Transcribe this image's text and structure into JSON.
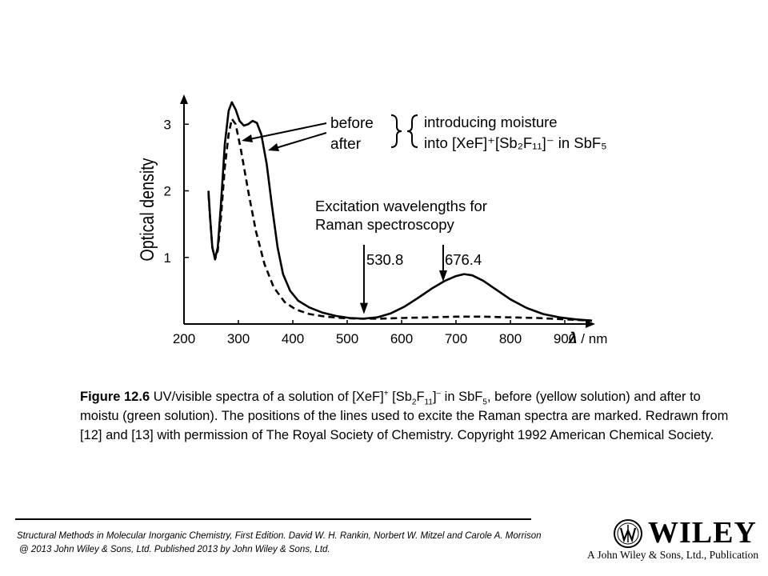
{
  "chart_data": {
    "type": "line",
    "xlabel": "λ / nm",
    "ylabel": "Optical density",
    "xlim": [
      200,
      950
    ],
    "ylim": [
      0,
      3.4
    ],
    "x_ticks": [
      "200",
      "300",
      "400",
      "500",
      "600",
      "700",
      "800",
      "900"
    ],
    "y_ticks": [
      "1",
      "2",
      "3"
    ],
    "grid": false,
    "series": [
      {
        "style": "solid",
        "points": [
          [
            245,
            2.0
          ],
          [
            248,
            1.6
          ],
          [
            252,
            1.15
          ],
          [
            257,
            0.98
          ],
          [
            262,
            1.15
          ],
          [
            268,
            1.8
          ],
          [
            275,
            2.7
          ],
          [
            282,
            3.2
          ],
          [
            288,
            3.33
          ],
          [
            295,
            3.22
          ],
          [
            302,
            3.05
          ],
          [
            310,
            2.98
          ],
          [
            318,
            3.0
          ],
          [
            326,
            3.05
          ],
          [
            334,
            3.02
          ],
          [
            342,
            2.85
          ],
          [
            352,
            2.4
          ],
          [
            362,
            1.75
          ],
          [
            372,
            1.15
          ],
          [
            382,
            0.75
          ],
          [
            395,
            0.5
          ],
          [
            410,
            0.35
          ],
          [
            430,
            0.25
          ],
          [
            455,
            0.17
          ],
          [
            480,
            0.12
          ],
          [
            505,
            0.09
          ],
          [
            530,
            0.08
          ],
          [
            555,
            0.1
          ],
          [
            580,
            0.16
          ],
          [
            605,
            0.26
          ],
          [
            630,
            0.39
          ],
          [
            655,
            0.53
          ],
          [
            680,
            0.65
          ],
          [
            700,
            0.72
          ],
          [
            715,
            0.75
          ],
          [
            730,
            0.73
          ],
          [
            750,
            0.65
          ],
          [
            775,
            0.51
          ],
          [
            800,
            0.37
          ],
          [
            830,
            0.24
          ],
          [
            860,
            0.15
          ],
          [
            890,
            0.1
          ],
          [
            920,
            0.07
          ],
          [
            950,
            0.05
          ]
        ]
      },
      {
        "style": "dashed",
        "points": [
          [
            245,
            1.95
          ],
          [
            248,
            1.6
          ],
          [
            252,
            1.15
          ],
          [
            257,
            0.97
          ],
          [
            262,
            1.1
          ],
          [
            268,
            1.6
          ],
          [
            275,
            2.35
          ],
          [
            282,
            2.85
          ],
          [
            288,
            3.08
          ],
          [
            295,
            3.0
          ],
          [
            305,
            2.6
          ],
          [
            318,
            2.0
          ],
          [
            332,
            1.4
          ],
          [
            348,
            0.9
          ],
          [
            365,
            0.55
          ],
          [
            385,
            0.33
          ],
          [
            405,
            0.22
          ],
          [
            430,
            0.15
          ],
          [
            460,
            0.11
          ],
          [
            490,
            0.09
          ],
          [
            520,
            0.08
          ],
          [
            560,
            0.08
          ],
          [
            600,
            0.09
          ],
          [
            650,
            0.1
          ],
          [
            700,
            0.11
          ],
          [
            750,
            0.11
          ],
          [
            800,
            0.1
          ],
          [
            850,
            0.09
          ],
          [
            900,
            0.07
          ],
          [
            950,
            0.05
          ]
        ]
      }
    ],
    "excitation_lines": [
      {
        "label": "530.8",
        "wavelength": 530.8
      },
      {
        "label": "676.4",
        "wavelength": 676.4
      }
    ]
  },
  "annotations": {
    "before": "before",
    "after": "after",
    "moisture_line1": "introducing moisture",
    "moisture_line2": "into [XeF]⁺[Sb₂F₁₁]⁻ in SbF₅",
    "excitation_title1": "Excitation wavelengths for",
    "excitation_title2": "Raman spectroscopy"
  },
  "caption": {
    "figure_label": "Figure 12.6",
    "text_1": " UV/visible spectra of a solution of [XeF]",
    "sup_plus": "+",
    "text_2": " [Sb",
    "sub_2": "2",
    "text_3": "F",
    "sub_11": "11",
    "text_4": "]",
    "sup_minus": "–",
    "text_5": " in SbF",
    "sub_5": "5",
    "text_6": ", before (yellow solution) and after  to moistu (green solution). The positions of the lines used to excite the Raman spectra are marked. Redrawn from [12] and [13] with permission of The Royal Society of Chemistry. Copyright 1992 American Chemical Society."
  },
  "footer": {
    "line1": "Structural Methods in Molecular Inorganic Chemistry, First Edition. David W. H. Rankin, Norbert W. Mitzel and Carole A. Morrison",
    "line2": "@ 2013 John Wiley & Sons, Ltd. Published 2013 by John Wiley & Sons, Ltd."
  },
  "logo": {
    "wordmark": "WILEY",
    "tagline": "A John Wiley & Sons, Ltd., Publication"
  }
}
